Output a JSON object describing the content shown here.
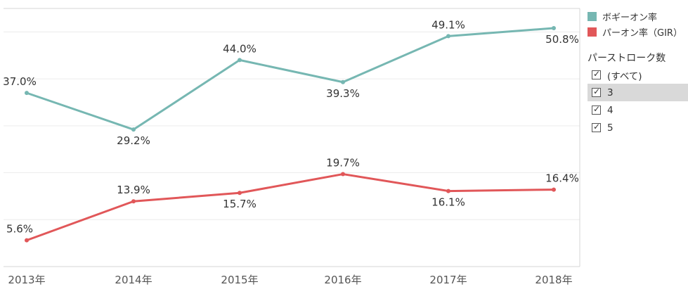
{
  "chart_data": {
    "type": "line",
    "categories": [
      "2013年",
      "2014年",
      "2015年",
      "2016年",
      "2017年",
      "2018年"
    ],
    "ylim": [
      0,
      55
    ],
    "grid": true,
    "legend_position": "right",
    "series": [
      {
        "name": "ボギーオン率",
        "color": "#76b7b2",
        "values": [
          37.0,
          29.2,
          44.0,
          39.3,
          49.1,
          50.8
        ],
        "labels": [
          "37.0%",
          "29.2%",
          "44.0%",
          "39.3%",
          "49.1%",
          "50.8%"
        ]
      },
      {
        "name": "パーオン率（GIR）",
        "color": "#e15759",
        "values": [
          5.6,
          13.9,
          15.7,
          19.7,
          16.1,
          16.4
        ],
        "labels": [
          "5.6%",
          "13.9%",
          "15.7%",
          "19.7%",
          "16.1%",
          "16.4%"
        ]
      }
    ]
  },
  "legend": {
    "items": [
      {
        "label": "ボギーオン率",
        "color": "#76b7b2"
      },
      {
        "label": "パーオン率（GIR）",
        "color": "#e15759"
      }
    ]
  },
  "filter": {
    "title": "パーストローク数",
    "items": [
      {
        "label": "(すべて)",
        "checked": true
      },
      {
        "label": "3",
        "checked": true
      },
      {
        "label": "4",
        "checked": true
      },
      {
        "label": "5",
        "checked": true
      }
    ]
  }
}
